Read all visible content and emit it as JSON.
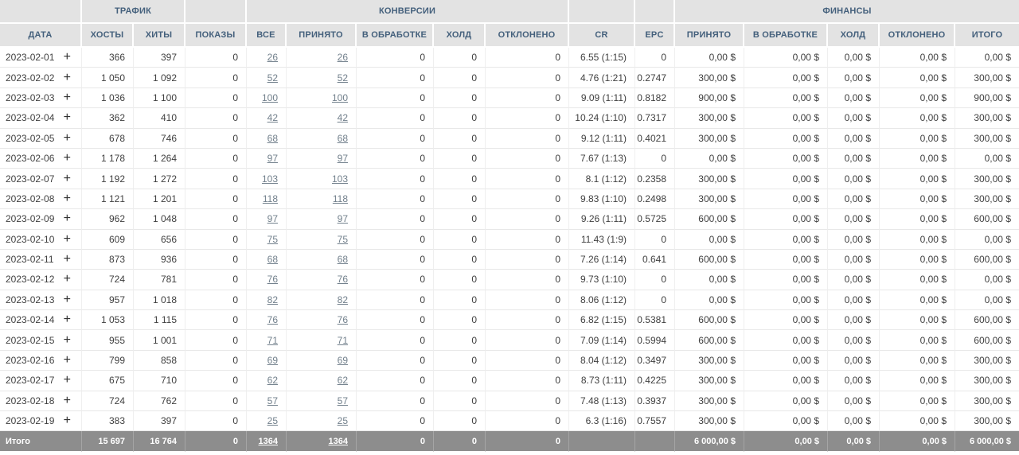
{
  "colors": {
    "header_bg": "#e3e3e3",
    "header_text": "#44607c",
    "body_text": "#3f3f3f",
    "link_color": "#72808c",
    "footer_bg": "#8d8d8d",
    "footer_text": "#ffffff",
    "row_border": "#e8e8e8"
  },
  "table": {
    "group_headers": [
      {
        "key": "spacer-date",
        "label": "",
        "span": 1
      },
      {
        "key": "traffic",
        "label": "ТРАФИК",
        "span": 2
      },
      {
        "key": "spacer-shows",
        "label": "",
        "span": 1
      },
      {
        "key": "conversions",
        "label": "КОНВЕРСИИ",
        "span": 5
      },
      {
        "key": "spacer-cr",
        "label": "",
        "span": 1
      },
      {
        "key": "spacer-epc",
        "label": "",
        "span": 1
      },
      {
        "key": "finance",
        "label": "ФИНАНСЫ",
        "span": 5
      }
    ],
    "columns": [
      {
        "key": "date",
        "label": "ДАТА",
        "align": "left",
        "link": false
      },
      {
        "key": "hosts",
        "label": "ХОСТЫ",
        "link": false
      },
      {
        "key": "hits",
        "label": "ХИТЫ",
        "link": false
      },
      {
        "key": "shows",
        "label": "ПОКАЗЫ",
        "link": false
      },
      {
        "key": "all",
        "label": "ВСЕ",
        "link": true
      },
      {
        "key": "accepted",
        "label": "ПРИНЯТО",
        "link": true
      },
      {
        "key": "processing",
        "label": "В ОБРАБОТКЕ",
        "link": false
      },
      {
        "key": "hold",
        "label": "ХОЛД",
        "link": false
      },
      {
        "key": "declined",
        "label": "ОТКЛОНЕНО",
        "link": false
      },
      {
        "key": "cr",
        "label": "CR",
        "link": false
      },
      {
        "key": "epc",
        "label": "EPC",
        "link": false
      },
      {
        "key": "fin_accepted",
        "label": "ПРИНЯТО",
        "link": false
      },
      {
        "key": "fin_processing",
        "label": "В ОБРАБОТКЕ",
        "link": false
      },
      {
        "key": "fin_hold",
        "label": "ХОЛД",
        "link": false
      },
      {
        "key": "fin_declined",
        "label": "ОТКЛОНЕНО",
        "link": false
      },
      {
        "key": "fin_total",
        "label": "ИТОГО",
        "link": false
      }
    ],
    "expand_button_label": "+",
    "rows": [
      [
        "2023-02-01",
        "366",
        "397",
        "0",
        "26",
        "26",
        "0",
        "0",
        "0",
        "6.55 (1:15)",
        "0",
        "0,00 $",
        "0,00 $",
        "0,00 $",
        "0,00 $",
        "0,00 $"
      ],
      [
        "2023-02-02",
        "1 050",
        "1 092",
        "0",
        "52",
        "52",
        "0",
        "0",
        "0",
        "4.76 (1:21)",
        "0.2747",
        "300,00 $",
        "0,00 $",
        "0,00 $",
        "0,00 $",
        "300,00 $"
      ],
      [
        "2023-02-03",
        "1 036",
        "1 100",
        "0",
        "100",
        "100",
        "0",
        "0",
        "0",
        "9.09 (1:11)",
        "0.8182",
        "900,00 $",
        "0,00 $",
        "0,00 $",
        "0,00 $",
        "900,00 $"
      ],
      [
        "2023-02-04",
        "362",
        "410",
        "0",
        "42",
        "42",
        "0",
        "0",
        "0",
        "10.24 (1:10)",
        "0.7317",
        "300,00 $",
        "0,00 $",
        "0,00 $",
        "0,00 $",
        "300,00 $"
      ],
      [
        "2023-02-05",
        "678",
        "746",
        "0",
        "68",
        "68",
        "0",
        "0",
        "0",
        "9.12 (1:11)",
        "0.4021",
        "300,00 $",
        "0,00 $",
        "0,00 $",
        "0,00 $",
        "300,00 $"
      ],
      [
        "2023-02-06",
        "1 178",
        "1 264",
        "0",
        "97",
        "97",
        "0",
        "0",
        "0",
        "7.67 (1:13)",
        "0",
        "0,00 $",
        "0,00 $",
        "0,00 $",
        "0,00 $",
        "0,00 $"
      ],
      [
        "2023-02-07",
        "1 192",
        "1 272",
        "0",
        "103",
        "103",
        "0",
        "0",
        "0",
        "8.1 (1:12)",
        "0.2358",
        "300,00 $",
        "0,00 $",
        "0,00 $",
        "0,00 $",
        "300,00 $"
      ],
      [
        "2023-02-08",
        "1 121",
        "1 201",
        "0",
        "118",
        "118",
        "0",
        "0",
        "0",
        "9.83 (1:10)",
        "0.2498",
        "300,00 $",
        "0,00 $",
        "0,00 $",
        "0,00 $",
        "300,00 $"
      ],
      [
        "2023-02-09",
        "962",
        "1 048",
        "0",
        "97",
        "97",
        "0",
        "0",
        "0",
        "9.26 (1:11)",
        "0.5725",
        "600,00 $",
        "0,00 $",
        "0,00 $",
        "0,00 $",
        "600,00 $"
      ],
      [
        "2023-02-10",
        "609",
        "656",
        "0",
        "75",
        "75",
        "0",
        "0",
        "0",
        "11.43 (1:9)",
        "0",
        "0,00 $",
        "0,00 $",
        "0,00 $",
        "0,00 $",
        "0,00 $"
      ],
      [
        "2023-02-11",
        "873",
        "936",
        "0",
        "68",
        "68",
        "0",
        "0",
        "0",
        "7.26 (1:14)",
        "0.641",
        "600,00 $",
        "0,00 $",
        "0,00 $",
        "0,00 $",
        "600,00 $"
      ],
      [
        "2023-02-12",
        "724",
        "781",
        "0",
        "76",
        "76",
        "0",
        "0",
        "0",
        "9.73 (1:10)",
        "0",
        "0,00 $",
        "0,00 $",
        "0,00 $",
        "0,00 $",
        "0,00 $"
      ],
      [
        "2023-02-13",
        "957",
        "1 018",
        "0",
        "82",
        "82",
        "0",
        "0",
        "0",
        "8.06 (1:12)",
        "0",
        "0,00 $",
        "0,00 $",
        "0,00 $",
        "0,00 $",
        "0,00 $"
      ],
      [
        "2023-02-14",
        "1 053",
        "1 115",
        "0",
        "76",
        "76",
        "0",
        "0",
        "0",
        "6.82 (1:15)",
        "0.5381",
        "600,00 $",
        "0,00 $",
        "0,00 $",
        "0,00 $",
        "600,00 $"
      ],
      [
        "2023-02-15",
        "955",
        "1 001",
        "0",
        "71",
        "71",
        "0",
        "0",
        "0",
        "7.09 (1:14)",
        "0.5994",
        "600,00 $",
        "0,00 $",
        "0,00 $",
        "0,00 $",
        "600,00 $"
      ],
      [
        "2023-02-16",
        "799",
        "858",
        "0",
        "69",
        "69",
        "0",
        "0",
        "0",
        "8.04 (1:12)",
        "0.3497",
        "300,00 $",
        "0,00 $",
        "0,00 $",
        "0,00 $",
        "300,00 $"
      ],
      [
        "2023-02-17",
        "675",
        "710",
        "0",
        "62",
        "62",
        "0",
        "0",
        "0",
        "8.73 (1:11)",
        "0.4225",
        "300,00 $",
        "0,00 $",
        "0,00 $",
        "0,00 $",
        "300,00 $"
      ],
      [
        "2023-02-18",
        "724",
        "762",
        "0",
        "57",
        "57",
        "0",
        "0",
        "0",
        "7.48 (1:13)",
        "0.3937",
        "300,00 $",
        "0,00 $",
        "0,00 $",
        "0,00 $",
        "300,00 $"
      ],
      [
        "2023-02-19",
        "383",
        "397",
        "0",
        "25",
        "25",
        "0",
        "0",
        "0",
        "6.3 (1:16)",
        "0.7557",
        "300,00 $",
        "0,00 $",
        "0,00 $",
        "0,00 $",
        "300,00 $"
      ]
    ],
    "footer": [
      "Итого",
      "15 697",
      "16 764",
      "0",
      "1364",
      "1364",
      "0",
      "0",
      "0",
      "",
      "",
      "6 000,00 $",
      "0,00 $",
      "0,00 $",
      "0,00 $",
      "6 000,00 $"
    ]
  }
}
